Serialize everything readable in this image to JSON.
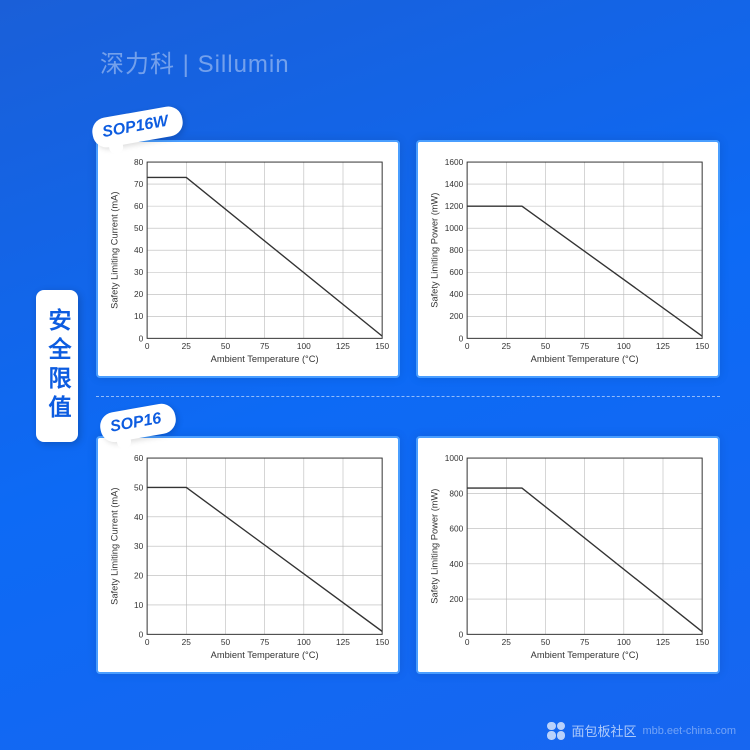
{
  "header": {
    "text": "深力科 | Sillumin"
  },
  "side_label": "安全限值",
  "sections": [
    {
      "tag": "SOP16W"
    },
    {
      "tag": "SOP16"
    }
  ],
  "watermark": {
    "text": "面包板社区",
    "url": "mbb.eet-china.com"
  },
  "charts": {
    "common": {
      "xlabel": "Ambient Temperature (°C)",
      "xlim": [
        0,
        150
      ],
      "xtick_step": 25,
      "background_color": "#ffffff",
      "grid_color": "#b8b8b8",
      "border_color": "#333333",
      "line_color": "#333333",
      "font_family": "Arial",
      "tick_fontsize": 8.5,
      "label_fontsize": 9.5
    },
    "c1": {
      "type": "line",
      "ylabel": "Safety Limiting Current (mA)",
      "ylim": [
        0,
        80
      ],
      "ytick_step": 10,
      "points": [
        [
          0,
          73
        ],
        [
          25,
          73
        ],
        [
          150,
          1
        ]
      ]
    },
    "c2": {
      "type": "line",
      "ylabel": "Safety Limiting Power (mW)",
      "ylim": [
        0,
        1600
      ],
      "ytick_step": 200,
      "points": [
        [
          0,
          1200
        ],
        [
          35,
          1200
        ],
        [
          150,
          20
        ]
      ]
    },
    "c3": {
      "type": "line",
      "ylabel": "Safety Limiting Current (mA)",
      "ylim": [
        0,
        60
      ],
      "ytick_step": 10,
      "points": [
        [
          0,
          50
        ],
        [
          25,
          50
        ],
        [
          150,
          1
        ]
      ]
    },
    "c4": {
      "type": "line",
      "ylabel": "Safety Limiting Power (mW)",
      "ylim": [
        0,
        1000
      ],
      "ytick_step": 200,
      "points": [
        [
          0,
          830
        ],
        [
          35,
          830
        ],
        [
          150,
          15
        ]
      ]
    }
  }
}
